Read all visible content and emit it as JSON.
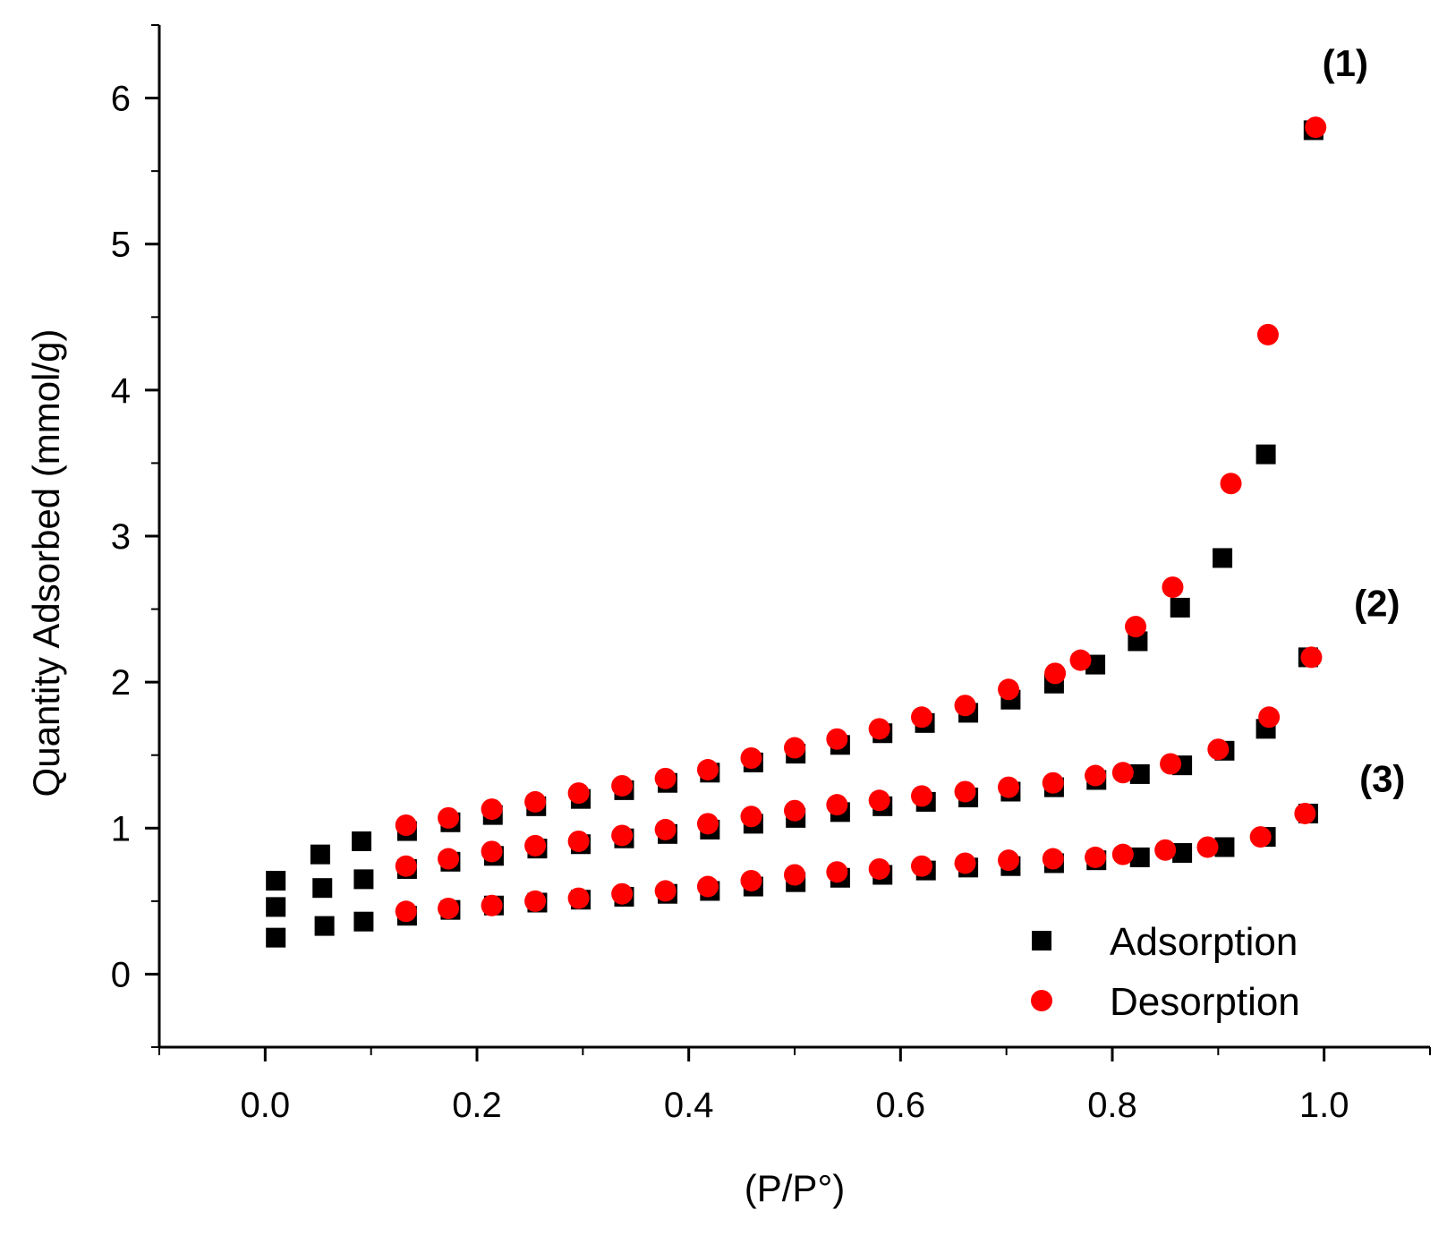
{
  "chart_data": {
    "type": "scatter",
    "title": "",
    "xlabel": "(P/P°)",
    "ylabel": "Quantity Adsorbed (mmol/g)",
    "xlim": [
      -0.1,
      1.1
    ],
    "ylim": [
      -0.5,
      6.5
    ],
    "xticks": [
      0.0,
      0.2,
      0.4,
      0.6,
      0.8,
      1.0
    ],
    "xtick_labels": [
      "0.0",
      "0.2",
      "0.4",
      "0.6",
      "0.8",
      "1.0"
    ],
    "yticks": [
      0,
      1,
      2,
      3,
      4,
      5,
      6
    ],
    "ytick_labels": [
      "0",
      "1",
      "2",
      "3",
      "4",
      "5",
      "6"
    ],
    "grid": false,
    "legend": {
      "position": "bottom-right",
      "entries": [
        {
          "name": "Adsorption",
          "marker": "square",
          "color": "#000000"
        },
        {
          "name": "Desorption",
          "marker": "circle",
          "color": "#ff0000"
        }
      ]
    },
    "annotations": [
      {
        "text": "(1)",
        "x": 1.02,
        "y": 6.15
      },
      {
        "text": "(2)",
        "x": 1.05,
        "y": 2.45
      },
      {
        "text": "(3)",
        "x": 1.055,
        "y": 1.25
      }
    ],
    "series": [
      {
        "name": "Adsorption",
        "group": "(1)",
        "marker": "square",
        "color": "#000000",
        "x": [
          0.01,
          0.052,
          0.091,
          0.134,
          0.175,
          0.215,
          0.256,
          0.298,
          0.339,
          0.38,
          0.42,
          0.461,
          0.501,
          0.543,
          0.583,
          0.623,
          0.664,
          0.704,
          0.745,
          0.784,
          0.824,
          0.864,
          0.904,
          0.945,
          0.99
        ],
        "y": [
          0.64,
          0.82,
          0.91,
          0.98,
          1.04,
          1.09,
          1.15,
          1.2,
          1.26,
          1.31,
          1.38,
          1.45,
          1.51,
          1.57,
          1.65,
          1.72,
          1.79,
          1.88,
          1.99,
          2.12,
          2.28,
          2.51,
          2.85,
          3.56,
          5.78
        ]
      },
      {
        "name": "Desorption",
        "group": "(1)",
        "marker": "circle",
        "color": "#ff0000",
        "x": [
          0.133,
          0.173,
          0.214,
          0.255,
          0.296,
          0.337,
          0.378,
          0.418,
          0.459,
          0.5,
          0.54,
          0.58,
          0.62,
          0.661,
          0.702,
          0.746,
          0.77,
          0.822,
          0.857,
          0.912,
          0.947,
          0.992
        ],
        "y": [
          1.02,
          1.07,
          1.13,
          1.18,
          1.24,
          1.29,
          1.34,
          1.4,
          1.48,
          1.55,
          1.61,
          1.68,
          1.76,
          1.84,
          1.95,
          2.06,
          2.15,
          2.38,
          2.65,
          3.36,
          4.38,
          5.8
        ]
      },
      {
        "name": "Adsorption",
        "group": "(2)",
        "marker": "square",
        "color": "#000000",
        "x": [
          0.01,
          0.054,
          0.093,
          0.134,
          0.175,
          0.216,
          0.257,
          0.298,
          0.339,
          0.38,
          0.42,
          0.461,
          0.501,
          0.543,
          0.583,
          0.624,
          0.664,
          0.704,
          0.745,
          0.785,
          0.826,
          0.866,
          0.906,
          0.945,
          0.985
        ],
        "y": [
          0.46,
          0.59,
          0.65,
          0.72,
          0.77,
          0.81,
          0.86,
          0.89,
          0.93,
          0.96,
          0.99,
          1.03,
          1.07,
          1.11,
          1.15,
          1.18,
          1.21,
          1.25,
          1.28,
          1.33,
          1.37,
          1.43,
          1.53,
          1.68,
          2.17
        ]
      },
      {
        "name": "Desorption",
        "group": "(2)",
        "marker": "circle",
        "color": "#ff0000",
        "x": [
          0.133,
          0.173,
          0.214,
          0.255,
          0.296,
          0.337,
          0.378,
          0.418,
          0.459,
          0.5,
          0.54,
          0.58,
          0.62,
          0.661,
          0.702,
          0.744,
          0.784,
          0.81,
          0.855,
          0.9,
          0.948,
          0.988
        ],
        "y": [
          0.74,
          0.79,
          0.84,
          0.88,
          0.91,
          0.95,
          0.99,
          1.03,
          1.08,
          1.12,
          1.16,
          1.19,
          1.22,
          1.25,
          1.28,
          1.31,
          1.36,
          1.38,
          1.44,
          1.54,
          1.76,
          2.17
        ]
      },
      {
        "name": "Adsorption",
        "group": "(3)",
        "marker": "square",
        "color": "#000000",
        "x": [
          0.01,
          0.056,
          0.093,
          0.134,
          0.175,
          0.216,
          0.257,
          0.298,
          0.339,
          0.38,
          0.42,
          0.461,
          0.501,
          0.543,
          0.583,
          0.624,
          0.664,
          0.704,
          0.745,
          0.785,
          0.826,
          0.866,
          0.906,
          0.945,
          0.985
        ],
        "y": [
          0.25,
          0.33,
          0.36,
          0.4,
          0.44,
          0.47,
          0.49,
          0.51,
          0.53,
          0.55,
          0.57,
          0.6,
          0.63,
          0.66,
          0.68,
          0.71,
          0.73,
          0.74,
          0.76,
          0.78,
          0.8,
          0.83,
          0.87,
          0.94,
          1.1
        ]
      },
      {
        "name": "Desorption",
        "group": "(3)",
        "marker": "circle",
        "color": "#ff0000",
        "x": [
          0.133,
          0.173,
          0.214,
          0.255,
          0.296,
          0.337,
          0.378,
          0.418,
          0.459,
          0.5,
          0.54,
          0.58,
          0.62,
          0.661,
          0.702,
          0.744,
          0.784,
          0.81,
          0.85,
          0.89,
          0.94,
          0.982
        ],
        "y": [
          0.43,
          0.45,
          0.47,
          0.5,
          0.52,
          0.55,
          0.57,
          0.6,
          0.64,
          0.68,
          0.7,
          0.72,
          0.74,
          0.76,
          0.78,
          0.79,
          0.8,
          0.82,
          0.85,
          0.87,
          0.94,
          1.1
        ]
      }
    ]
  }
}
